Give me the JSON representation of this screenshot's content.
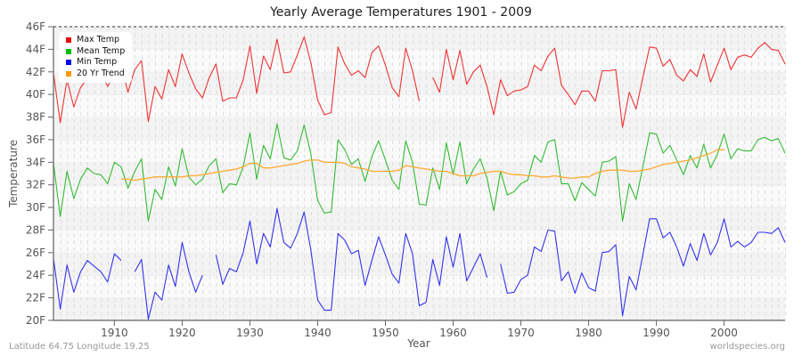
{
  "header": {
    "title": "Yearly Average Temperatures 1901 - 2009"
  },
  "footer": {
    "location": "Latitude 64.75 Longitude 19.25",
    "source": "worldspecies.org"
  },
  "legend": [
    {
      "label": "Max Temp",
      "color": "#ee0000"
    },
    {
      "label": "Mean Temp",
      "color": "#00bb00"
    },
    {
      "label": "Min Temp",
      "color": "#0000ee"
    },
    {
      "label": "20 Yr Trend",
      "color": "#ff9900"
    }
  ],
  "chart_data": {
    "type": "line",
    "title": "Yearly Average Temperatures 1901 - 2009",
    "xlabel": "Year",
    "ylabel": "Temperature",
    "xlim": [
      1901,
      2009
    ],
    "ylim": [
      20,
      46
    ],
    "x_ticks": [
      1910,
      1920,
      1930,
      1940,
      1950,
      1960,
      1970,
      1980,
      1990,
      2000
    ],
    "y_ticks": [
      "20F",
      "22F",
      "24F",
      "26F",
      "28F",
      "30F",
      "32F",
      "34F",
      "36F",
      "38F",
      "40F",
      "42F",
      "44F",
      "46F"
    ],
    "grid": true,
    "legend_position": "top-left",
    "x_start": 1901,
    "series": [
      {
        "name": "Max Temp",
        "color": "#ee3333",
        "values": [
          41.9,
          37.5,
          41.3,
          38.9,
          40.6,
          41.4,
          41.9,
          41.9,
          40.7,
          42.0,
          42.5,
          40.2,
          42.2,
          43.0,
          37.6,
          40.7,
          39.6,
          42.2,
          40.7,
          43.6,
          41.9,
          40.5,
          39.7,
          41.5,
          42.7,
          39.4,
          39.7,
          39.7,
          41.3,
          44.3,
          40.1,
          43.4,
          42.2,
          44.9,
          41.9,
          42.0,
          43.5,
          45.1,
          42.8,
          39.5,
          38.2,
          38.4,
          44.2,
          42.7,
          41.7,
          42.1,
          41.5,
          43.7,
          44.3,
          42.6,
          40.6,
          39.8,
          44.1,
          42.1,
          39.4,
          null,
          41.5,
          40.2,
          44.0,
          41.3,
          43.9,
          40.9,
          42.0,
          42.6,
          40.7,
          38.2,
          41.3,
          39.9,
          40.3,
          40.4,
          40.7,
          42.6,
          42.1,
          43.4,
          44.1,
          40.8,
          40.0,
          39.1,
          40.3,
          40.3,
          39.4,
          42.1,
          42.1,
          42.2,
          37.1,
          40.2,
          38.7,
          41.5,
          44.2,
          44.1,
          42.5,
          43.1,
          41.7,
          41.2,
          42.2,
          41.6,
          43.6,
          41.1,
          42.6,
          44.1,
          42.2,
          43.3,
          43.5,
          43.3,
          44.1,
          44.6,
          44.0,
          43.9,
          42.7
        ]
      },
      {
        "name": "Mean Temp",
        "color": "#33bb33",
        "values": [
          33.9,
          29.2,
          33.2,
          30.8,
          32.5,
          33.5,
          33.0,
          32.9,
          32.1,
          34.0,
          33.6,
          31.7,
          33.2,
          34.3,
          28.8,
          31.6,
          30.7,
          33.6,
          31.9,
          35.2,
          32.7,
          32.0,
          32.5,
          33.7,
          34.3,
          31.3,
          32.1,
          32.0,
          33.6,
          36.6,
          32.5,
          35.5,
          34.3,
          37.4,
          34.4,
          34.2,
          35.0,
          37.3,
          34.7,
          30.6,
          29.5,
          29.6,
          36.0,
          35.1,
          33.8,
          34.3,
          32.3,
          34.5,
          35.9,
          34.2,
          32.4,
          31.6,
          35.9,
          34.0,
          30.3,
          30.2,
          33.5,
          31.6,
          35.7,
          32.9,
          35.8,
          32.1,
          33.4,
          34.3,
          32.6,
          29.7,
          33.2,
          31.1,
          31.4,
          32.1,
          32.4,
          34.6,
          34.0,
          35.8,
          36.0,
          32.1,
          32.1,
          30.6,
          32.2,
          31.6,
          31.0,
          34.0,
          34.1,
          34.5,
          28.8,
          32.1,
          30.7,
          33.6,
          36.6,
          36.5,
          34.8,
          35.5,
          34.2,
          32.9,
          34.6,
          33.5,
          35.6,
          33.5,
          34.7,
          36.5,
          34.3,
          35.2,
          35.0,
          35.0,
          36.0,
          36.2,
          35.9,
          36.1,
          34.8
        ]
      },
      {
        "name": "Min Temp",
        "color": "#3333ee",
        "values": [
          25.5,
          21.0,
          24.9,
          22.5,
          24.3,
          25.3,
          24.8,
          24.3,
          23.4,
          25.9,
          25.3,
          null,
          24.3,
          25.4,
          20.1,
          22.5,
          21.8,
          24.9,
          23.0,
          26.9,
          24.3,
          22.5,
          24.0,
          null,
          25.8,
          23.2,
          24.6,
          24.3,
          26.0,
          28.8,
          25.0,
          27.7,
          26.5,
          29.9,
          26.9,
          26.4,
          27.7,
          29.6,
          26.2,
          21.8,
          20.9,
          20.9,
          27.7,
          27.1,
          25.9,
          26.2,
          23.1,
          25.3,
          27.4,
          25.8,
          24.1,
          23.3,
          27.7,
          25.9,
          21.3,
          21.6,
          25.4,
          23.1,
          27.4,
          24.7,
          27.7,
          23.5,
          24.7,
          25.9,
          23.8,
          null,
          25.0,
          22.4,
          22.5,
          23.6,
          24.0,
          26.5,
          26.1,
          28.0,
          27.9,
          23.5,
          24.3,
          22.4,
          24.2,
          22.9,
          22.6,
          26.0,
          26.1,
          26.7,
          20.4,
          23.9,
          22.7,
          25.8,
          29.0,
          29.0,
          27.3,
          27.8,
          26.5,
          24.8,
          26.8,
          25.3,
          27.7,
          25.8,
          26.9,
          29.0,
          26.5,
          27.0,
          26.5,
          26.9,
          27.8,
          27.8,
          27.7,
          28.2,
          26.9
        ]
      },
      {
        "name": "20 Yr Trend",
        "color": "#ffaa33",
        "values": [
          null,
          null,
          null,
          null,
          null,
          null,
          null,
          null,
          null,
          null,
          32.5,
          32.5,
          32.4,
          32.5,
          32.6,
          32.7,
          32.7,
          32.7,
          32.7,
          32.7,
          32.8,
          32.8,
          32.9,
          33.0,
          33.1,
          33.2,
          33.3,
          33.4,
          33.6,
          33.9,
          33.9,
          33.5,
          33.5,
          33.6,
          33.7,
          33.8,
          33.9,
          34.1,
          34.2,
          34.2,
          34.0,
          34.0,
          34.0,
          33.9,
          33.6,
          33.5,
          33.4,
          33.2,
          33.2,
          33.2,
          33.2,
          33.3,
          33.7,
          33.6,
          33.5,
          33.4,
          33.3,
          33.2,
          33.2,
          33.0,
          32.8,
          32.8,
          32.8,
          33.0,
          33.1,
          33.2,
          33.2,
          33.0,
          32.9,
          32.9,
          32.8,
          32.8,
          32.7,
          32.7,
          32.8,
          32.7,
          32.6,
          32.6,
          32.7,
          32.7,
          33.0,
          33.2,
          33.3,
          33.3,
          33.3,
          33.2,
          33.2,
          33.3,
          33.4,
          33.6,
          33.8,
          33.9,
          34.0,
          34.1,
          34.2,
          34.4,
          34.6,
          34.8,
          35.1,
          35.1,
          null,
          null,
          null,
          null,
          null,
          null,
          null,
          null,
          null
        ]
      }
    ]
  }
}
